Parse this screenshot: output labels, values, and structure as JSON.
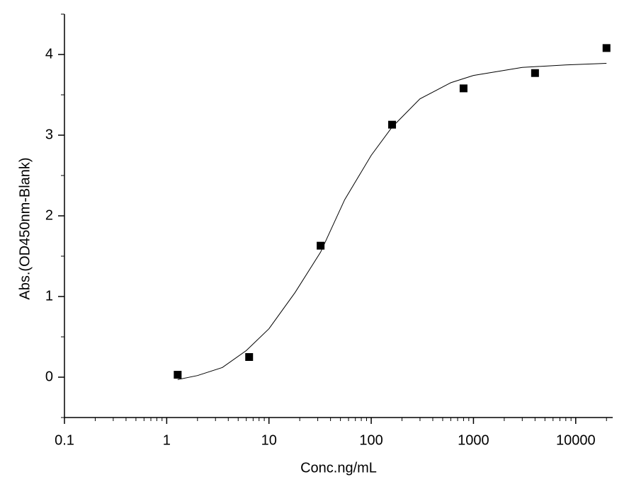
{
  "chart_data": {
    "type": "scatter",
    "x_label": "Conc.ng/mL",
    "y_label": "Abs.(OD450nm-Blank)",
    "xscale": "log",
    "xlim": [
      0.1,
      23000
    ],
    "ylim": [
      -0.5,
      4.5
    ],
    "xticks": [
      0.1,
      1,
      10,
      100,
      1000,
      10000
    ],
    "xminorticks": [
      0.2,
      0.3,
      0.4,
      0.5,
      0.6,
      0.7,
      0.8,
      0.9,
      2,
      3,
      4,
      5,
      6,
      7,
      8,
      9,
      20,
      30,
      40,
      50,
      60,
      70,
      80,
      90,
      200,
      300,
      400,
      500,
      600,
      700,
      800,
      900,
      2000,
      3000,
      4000,
      5000,
      6000,
      7000,
      8000,
      9000,
      20000
    ],
    "yticks": [
      0,
      1,
      2,
      3,
      4
    ],
    "yminorticks": [
      -0.5,
      0.5,
      1.5,
      2.5,
      3.5,
      4.5
    ],
    "series": [
      {
        "kind": "points",
        "color": "#000000",
        "x": [
          1.28,
          6.4,
          32,
          160,
          800,
          4000,
          20000
        ],
        "values": [
          0.03,
          0.25,
          1.63,
          3.13,
          3.58,
          3.77,
          4.08
        ]
      },
      {
        "kind": "curve",
        "color": "#000000",
        "x": [
          1.28,
          2,
          3.5,
          6,
          10,
          18,
          32,
          55,
          100,
          160,
          300,
          600,
          1000,
          3000,
          8000,
          20000
        ],
        "values": [
          -0.03,
          0.02,
          0.12,
          0.33,
          0.6,
          1.05,
          1.55,
          2.2,
          2.75,
          3.1,
          3.45,
          3.65,
          3.74,
          3.84,
          3.87,
          3.89
        ]
      }
    ]
  }
}
